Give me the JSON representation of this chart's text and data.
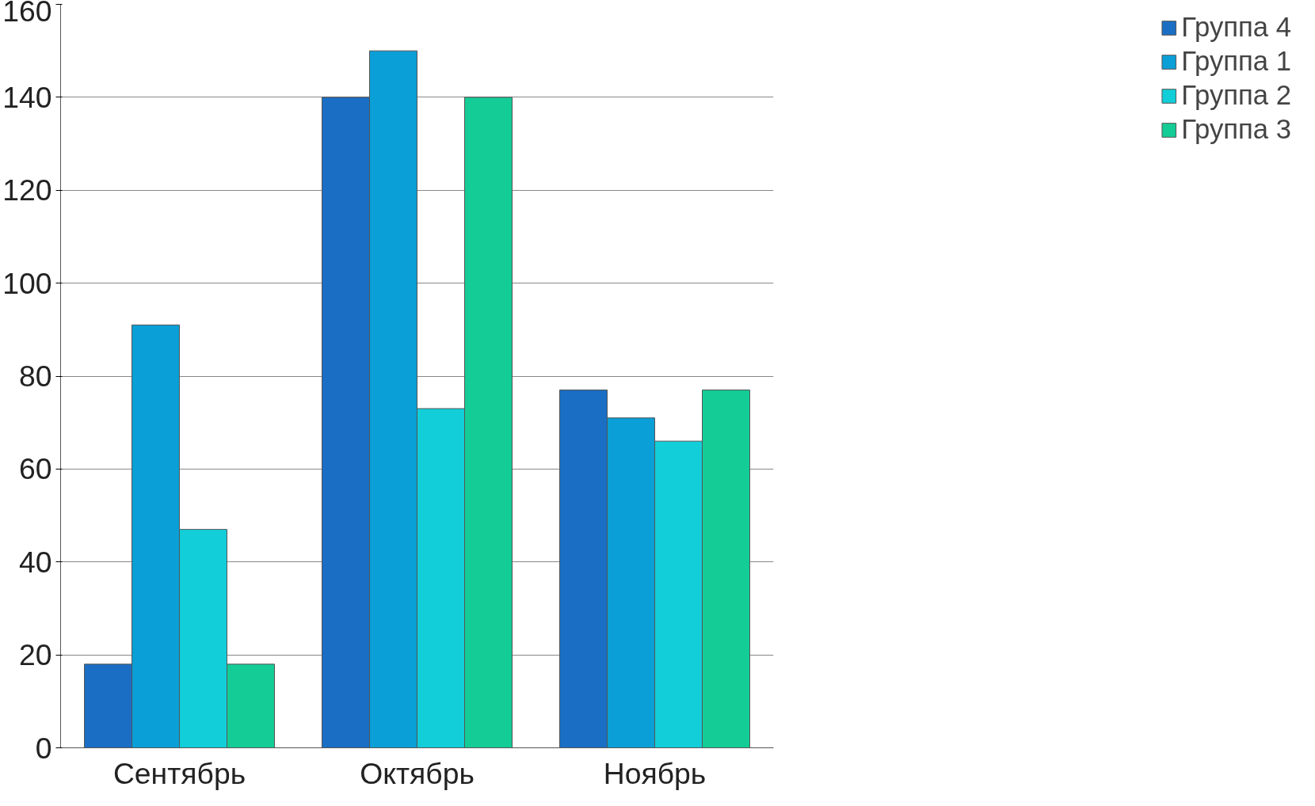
{
  "chart_data": {
    "type": "bar",
    "categories": [
      "Сентябрь",
      "Октябрь",
      "Ноябрь"
    ],
    "series": [
      {
        "name": "Группа 4",
        "color": "#1a6ec4",
        "values": [
          18,
          140,
          77
        ]
      },
      {
        "name": "Группа 1",
        "color": "#0a9fd6",
        "values": [
          91,
          150,
          71
        ]
      },
      {
        "name": "Группа 2",
        "color": "#12ced8",
        "values": [
          47,
          73,
          66
        ]
      },
      {
        "name": "Группа 3",
        "color": "#14cc96",
        "values": [
          18,
          140,
          77
        ]
      }
    ],
    "ylim": [
      0,
      160
    ],
    "yticks": [
      0,
      20,
      40,
      60,
      80,
      100,
      120,
      140,
      160
    ],
    "grid": "y",
    "legend": "right"
  }
}
